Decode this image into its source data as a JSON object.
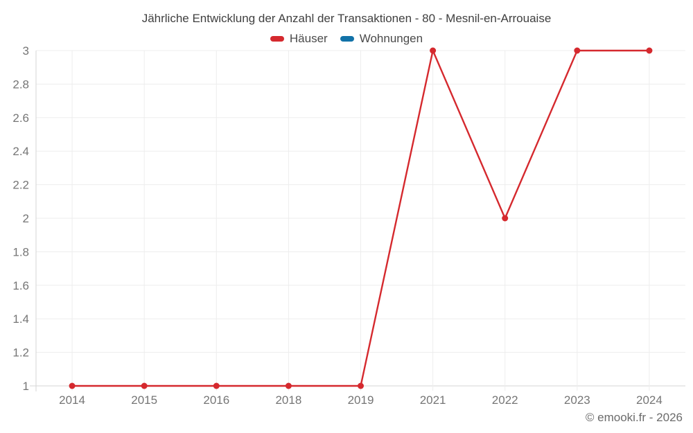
{
  "title": "Jährliche Entwicklung der Anzahl der Transaktionen - 80 - Mesnil-en-Arrouaise",
  "legend": {
    "items": [
      {
        "label": "Häuser",
        "color": "#d5292e"
      },
      {
        "label": "Wohnungen",
        "color": "#1272a8"
      }
    ]
  },
  "footer": {
    "copyright": "© emooki.fr - 2026"
  },
  "chart_data": {
    "type": "line",
    "title": "Jährliche Entwicklung der Anzahl der Transaktionen - 80 - Mesnil-en-Arrouaise",
    "categories": [
      "2014",
      "2015",
      "2016",
      "2018",
      "2019",
      "2021",
      "2022",
      "2023",
      "2024"
    ],
    "series": [
      {
        "name": "Häuser",
        "color": "#d5292e",
        "values": [
          1,
          1,
          1,
          1,
          1,
          3,
          2,
          3,
          3
        ]
      },
      {
        "name": "Wohnungen",
        "color": "#1272a8",
        "values": []
      }
    ],
    "xlabel": "",
    "ylabel": "",
    "ylim": [
      1,
      3
    ],
    "yticks": [
      1,
      1.2,
      1.4,
      1.6,
      1.8,
      2,
      2.2,
      2.4,
      2.6,
      2.8,
      3
    ],
    "ytick_labels": [
      "1",
      "1.2",
      "1.4",
      "1.6",
      "1.8",
      "2",
      "2.2",
      "2.4",
      "2.6",
      "2.8",
      "3"
    ],
    "grid": true,
    "legend_position": "top",
    "marker": "circle"
  }
}
